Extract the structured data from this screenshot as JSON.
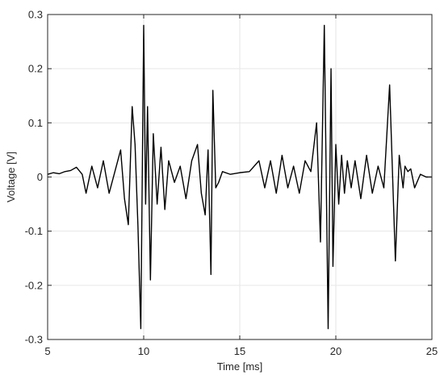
{
  "chart_data": {
    "type": "line",
    "title": "",
    "xlabel": "Time [ms]",
    "ylabel": "Voltage [V]",
    "xlim": [
      5,
      25
    ],
    "ylim": [
      -0.3,
      0.3
    ],
    "xticks": [
      5,
      10,
      15,
      20,
      25
    ],
    "xtick_labels": [
      "5",
      "10",
      "15",
      "20",
      "25"
    ],
    "yticks": [
      -0.3,
      -0.2,
      -0.1,
      0,
      0.1,
      0.2,
      0.3
    ],
    "ytick_labels": [
      "-0.3",
      "-0.2",
      "-0.1",
      "0",
      "0.1",
      "0.2",
      "0.3"
    ],
    "grid": true,
    "line_color": "#000000",
    "grid_color": "#e6e6e6",
    "series": [
      {
        "x": [
          5.0,
          5.3,
          5.6,
          5.9,
          6.2,
          6.5,
          6.8,
          7.0,
          7.3,
          7.6,
          7.9,
          8.2,
          8.5,
          8.8,
          9.0,
          9.2,
          9.4,
          9.55,
          9.7,
          9.85,
          10.0,
          10.1,
          10.2,
          10.35,
          10.5,
          10.7,
          10.9,
          11.1,
          11.3,
          11.6,
          11.9,
          12.2,
          12.5,
          12.8,
          13.0,
          13.2,
          13.35,
          13.5,
          13.6,
          13.75,
          13.9,
          14.1,
          14.5,
          15.0,
          15.5,
          16.0,
          16.3,
          16.6,
          16.9,
          17.2,
          17.5,
          17.8,
          18.1,
          18.4,
          18.7,
          19.0,
          19.2,
          19.4,
          19.6,
          19.75,
          19.85,
          20.0,
          20.15,
          20.3,
          20.45,
          20.6,
          20.8,
          21.0,
          21.3,
          21.6,
          21.9,
          22.2,
          22.5,
          22.8,
          23.1,
          23.3,
          23.5,
          23.6,
          23.75,
          23.9,
          24.1,
          24.4,
          24.7,
          25.0
        ],
        "y": [
          0.005,
          0.008,
          0.006,
          0.01,
          0.012,
          0.018,
          0.005,
          -0.03,
          0.02,
          -0.02,
          0.03,
          -0.03,
          0.01,
          0.05,
          -0.04,
          -0.088,
          0.13,
          0.06,
          -0.09,
          -0.28,
          0.28,
          -0.05,
          0.13,
          -0.19,
          0.08,
          -0.05,
          0.055,
          -0.06,
          0.03,
          -0.01,
          0.02,
          -0.04,
          0.03,
          0.06,
          -0.03,
          -0.07,
          0.05,
          -0.18,
          0.16,
          -0.02,
          -0.01,
          0.01,
          0.005,
          0.008,
          0.01,
          0.03,
          -0.02,
          0.03,
          -0.03,
          0.04,
          -0.02,
          0.02,
          -0.03,
          0.03,
          0.01,
          0.1,
          -0.12,
          0.28,
          -0.28,
          0.2,
          -0.165,
          0.06,
          -0.05,
          0.04,
          -0.03,
          0.03,
          -0.02,
          0.03,
          -0.04,
          0.04,
          -0.03,
          0.02,
          -0.02,
          0.17,
          -0.155,
          0.04,
          -0.02,
          0.02,
          0.01,
          0.015,
          -0.02,
          0.005,
          0.0,
          0.0
        ]
      }
    ]
  }
}
